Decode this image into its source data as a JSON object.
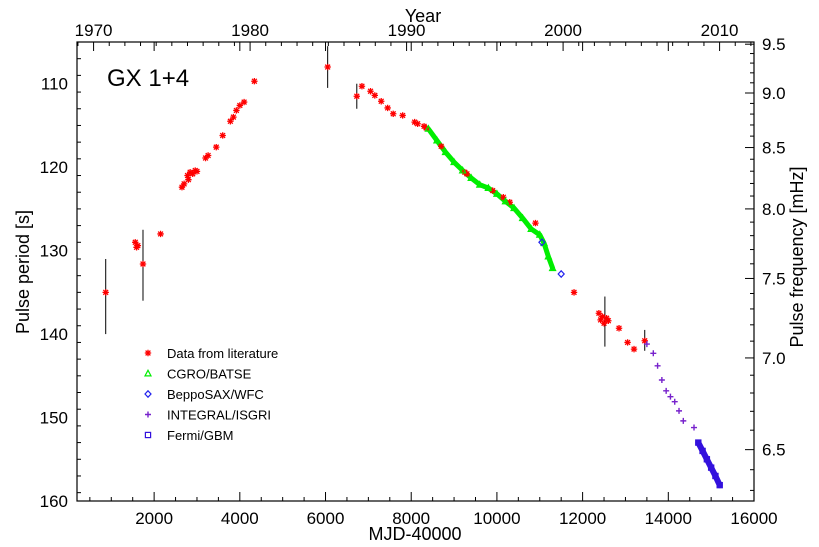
{
  "chart_data": {
    "type": "scatter",
    "title": "GX 1+4",
    "xlabel": "MJD-40000",
    "ylabel": "Pulse period [s]",
    "top_xlabel": "Year",
    "right_ylabel": "Pulse frequency [mHz]",
    "xlim": [
      200,
      16000
    ],
    "ylim": [
      160,
      105
    ],
    "x_ticks": [
      "2000",
      "4000",
      "6000",
      "8000",
      "10000",
      "12000",
      "14000",
      "16000"
    ],
    "y_ticks": [
      "110",
      "120",
      "130",
      "140",
      "150",
      "160"
    ],
    "top_ticks": [
      "1970",
      "1980",
      "1990",
      "2000",
      "2010"
    ],
    "right_ticks": [
      "9.5",
      "9.0",
      "8.5",
      "8.0",
      "7.5",
      "7.0",
      "6.5"
    ],
    "legend_position": "lower-left",
    "series": [
      {
        "name": "Data from literature",
        "color": "#ff0000",
        "marker": "star",
        "points": [
          [
            870,
            135.0
          ],
          [
            1560,
            129.0
          ],
          [
            1590,
            129.6
          ],
          [
            1620,
            129.4
          ],
          [
            1740,
            131.6
          ],
          [
            2150,
            128.0
          ],
          [
            2650,
            122.4
          ],
          [
            2700,
            122.0
          ],
          [
            2780,
            121.0
          ],
          [
            2800,
            121.5
          ],
          [
            2840,
            120.6
          ],
          [
            2900,
            120.8
          ],
          [
            2960,
            120.4
          ],
          [
            3000,
            120.5
          ],
          [
            3200,
            118.9
          ],
          [
            3260,
            118.6
          ],
          [
            3450,
            117.6
          ],
          [
            3600,
            116.2
          ],
          [
            3780,
            114.5
          ],
          [
            3850,
            114.0
          ],
          [
            3920,
            113.2
          ],
          [
            4000,
            112.6
          ],
          [
            4100,
            112.2
          ],
          [
            4340,
            109.7
          ],
          [
            6050,
            108.0
          ],
          [
            6730,
            111.5
          ],
          [
            6850,
            110.3
          ],
          [
            7050,
            110.9
          ],
          [
            7150,
            111.4
          ],
          [
            7300,
            112.1
          ],
          [
            7450,
            112.9
          ],
          [
            7580,
            113.6
          ],
          [
            7800,
            113.8
          ],
          [
            8080,
            114.6
          ],
          [
            8150,
            114.8
          ],
          [
            8300,
            115.1
          ],
          [
            8350,
            115.3
          ],
          [
            8700,
            117.5
          ],
          [
            9250,
            120.6
          ],
          [
            9300,
            120.8
          ],
          [
            9900,
            122.8
          ],
          [
            10150,
            123.6
          ],
          [
            10300,
            124.2
          ],
          [
            10900,
            126.7
          ],
          [
            11800,
            135.0
          ],
          [
            12380,
            137.5
          ],
          [
            12420,
            138.3
          ],
          [
            12460,
            137.9
          ],
          [
            12500,
            138.7
          ],
          [
            12560,
            138.1
          ],
          [
            12600,
            138.4
          ],
          [
            12850,
            139.3
          ],
          [
            13050,
            141.0
          ],
          [
            13200,
            141.8
          ],
          [
            13450,
            140.8
          ]
        ]
      },
      {
        "name": "CGRO/BATSE",
        "color": "#00ee00",
        "marker": "triangle",
        "points": [
          [
            8400,
            115.4
          ],
          [
            8600,
            116.8
          ],
          [
            8800,
            118.2
          ],
          [
            9000,
            119.4
          ],
          [
            9200,
            120.4
          ],
          [
            9400,
            121.3
          ],
          [
            9600,
            122.1
          ],
          [
            9800,
            122.5
          ],
          [
            10000,
            123.2
          ],
          [
            10200,
            124.1
          ],
          [
            10400,
            124.9
          ],
          [
            10600,
            126.1
          ],
          [
            10800,
            127.4
          ],
          [
            11000,
            128.1
          ],
          [
            11100,
            129.1
          ],
          [
            11200,
            130.7
          ],
          [
            11300,
            132.1
          ]
        ]
      },
      {
        "name": "BeppoSAX/WFC",
        "color": "#2222ee",
        "marker": "diamond",
        "points": [
          [
            11050,
            129.0
          ],
          [
            11500,
            132.8
          ]
        ]
      },
      {
        "name": "INTEGRAL/ISGRI",
        "color": "#7722cc",
        "marker": "plus",
        "points": [
          [
            13500,
            141.2
          ],
          [
            13650,
            142.3
          ],
          [
            13750,
            143.8
          ],
          [
            13850,
            145.5
          ],
          [
            13950,
            146.8
          ],
          [
            14050,
            147.5
          ],
          [
            14150,
            148.1
          ],
          [
            14250,
            149.2
          ],
          [
            14350,
            150.4
          ],
          [
            14600,
            151.2
          ]
        ]
      },
      {
        "name": "Fermi/GBM",
        "color": "#3311dd",
        "marker": "square",
        "points": [
          [
            14700,
            153.0
          ],
          [
            14800,
            154.0
          ],
          [
            14900,
            155.0
          ],
          [
            15000,
            156.0
          ],
          [
            15100,
            157.0
          ],
          [
            15200,
            158.1
          ]
        ]
      }
    ],
    "error_bars": [
      {
        "x": 870,
        "y_low": 131.0,
        "y_high": 140.0
      },
      {
        "x": 1740,
        "y_low": 127.5,
        "y_high": 136.0
      },
      {
        "x": 6050,
        "y_low": 105.5,
        "y_high": 110.5
      },
      {
        "x": 6730,
        "y_low": 110.0,
        "y_high": 113.0
      },
      {
        "x": 12520,
        "y_low": 135.5,
        "y_high": 141.5
      },
      {
        "x": 13450,
        "y_low": 139.5,
        "y_high": 142.0
      }
    ]
  }
}
